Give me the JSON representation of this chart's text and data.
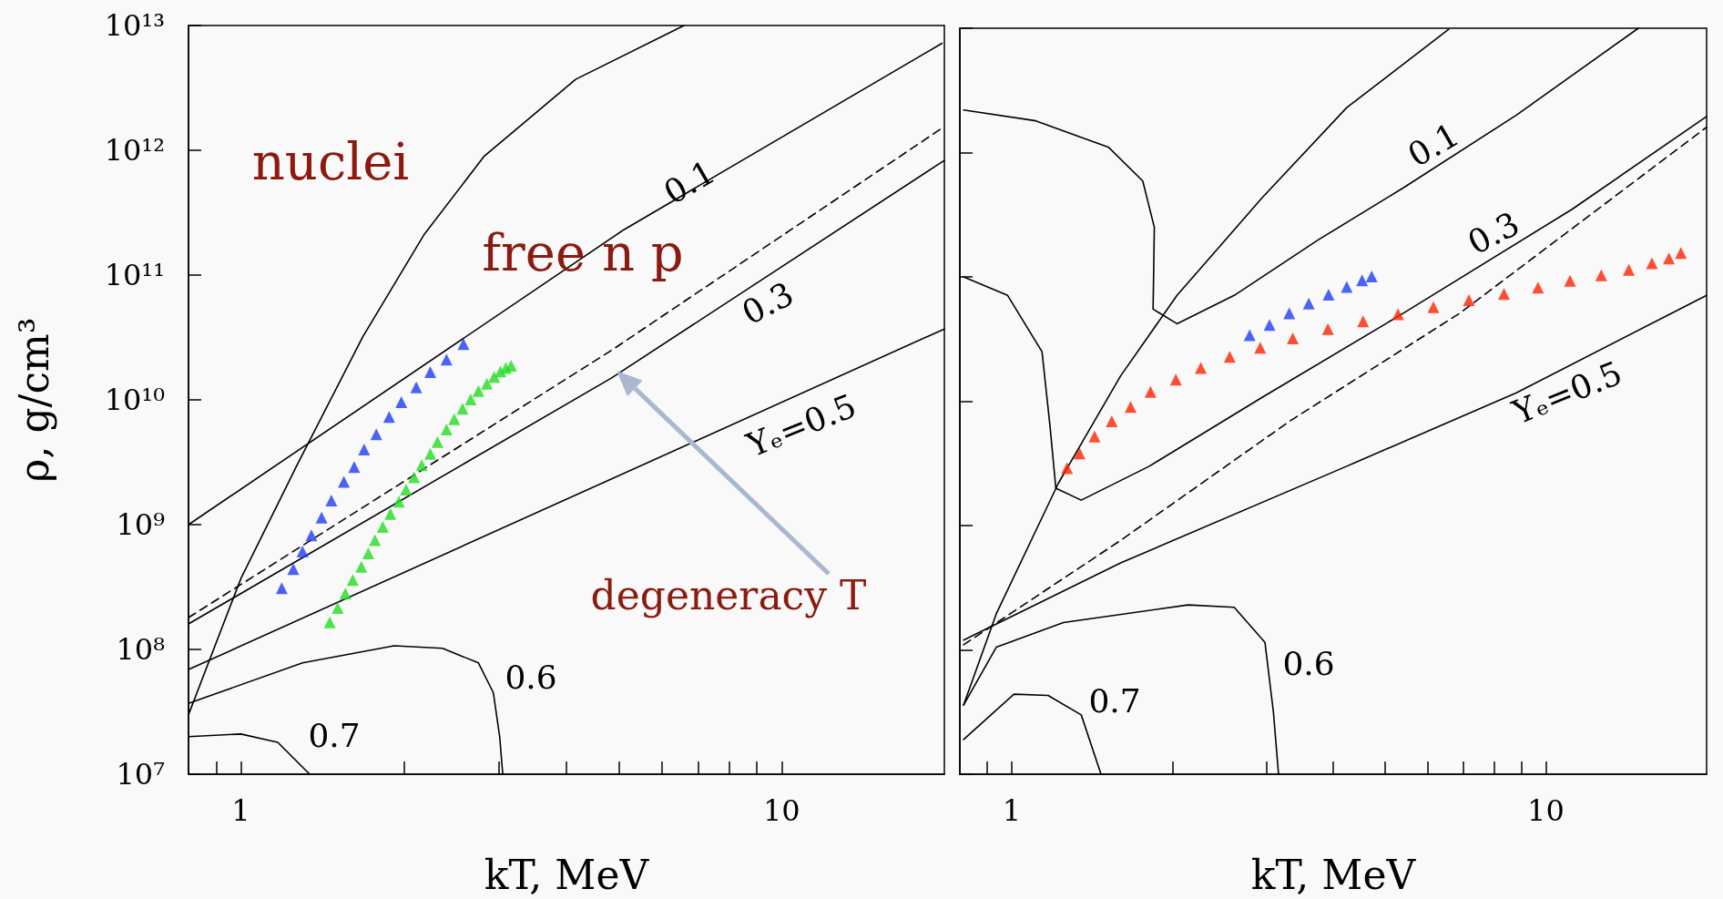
{
  "chart_data": [
    {
      "type": "line",
      "xlabel": "kT, MeV",
      "ylabel": "ρ, g/cm³",
      "log": "xy",
      "grid": false,
      "xlim": [
        0.8,
        20
      ],
      "ylim": [
        10000000.0,
        10000000000000.0
      ],
      "xticks": [
        {
          "value": 0.9,
          "label": null
        },
        {
          "value": 1,
          "label": "1"
        },
        {
          "value": 2,
          "label": null
        },
        {
          "value": 3,
          "label": null
        },
        {
          "value": 4,
          "label": null
        },
        {
          "value": 5,
          "label": null
        },
        {
          "value": 6,
          "label": null
        },
        {
          "value": 7,
          "label": null
        },
        {
          "value": 8,
          "label": null
        },
        {
          "value": 9,
          "label": null
        },
        {
          "value": 10,
          "label": "10"
        }
      ],
      "yticks": [
        {
          "value": 10000000.0,
          "label": "10⁷"
        },
        {
          "value": 100000000.0,
          "label": "10⁸"
        },
        {
          "value": 1000000000.0,
          "label": "10⁹"
        },
        {
          "value": 10000000000.0,
          "label": "10¹⁰"
        },
        {
          "value": 100000000000.0,
          "label": "10¹¹"
        },
        {
          "value": 1000000000000.0,
          "label": "10¹²"
        },
        {
          "value": 10000000000000.0,
          "label": "10¹³"
        }
      ],
      "series": [
        {
          "color": "#000000",
          "marker": "none",
          "line_style": "solid",
          "x": [
            0.8,
            1.0,
            1.27,
            1.68,
            2.18,
            2.82,
            4.16,
            6.6
          ],
          "values": [
            30000000.0,
            370000000.0,
            3000000000.0,
            32000000000.0,
            210000000000.0,
            900000000000.0,
            3700000000000.0,
            10000000000000.0
          ]
        },
        {
          "color": "#000000",
          "marker": "none",
          "line_style": "solid",
          "x": [
            0.8,
            5.1,
            19.8
          ],
          "values": [
            1000000000.0,
            230000000000.0,
            7200000000000.0
          ]
        },
        {
          "color": "#000000",
          "marker": "none",
          "line_style": "dashed",
          "x": [
            0.8,
            4.85,
            20
          ],
          "values": [
            180000000.0,
            25000000000.0,
            1550000000000.0
          ]
        },
        {
          "color": "#000000",
          "marker": "none",
          "line_style": "solid",
          "x": [
            0.8,
            4.85,
            20
          ],
          "values": [
            160000000.0,
            15000000000.0,
            830000000000.0
          ]
        },
        {
          "color": "#000000",
          "marker": "none",
          "line_style": "solid",
          "x": [
            0.8,
            20
          ],
          "values": [
            69000000.0,
            37000000000.0
          ]
        },
        {
          "color": "#000000",
          "marker": "none",
          "line_style": "solid",
          "x": [
            0.8,
            1.3,
            1.92,
            2.36,
            2.75,
            2.93,
            3.01,
            3.05
          ],
          "values": [
            37000000.0,
            78000000.0,
            107000000.0,
            102000000.0,
            78000000.0,
            45000000.0,
            20000000.0,
            10000000.0
          ]
        },
        {
          "color": "#000000",
          "marker": "none",
          "line_style": "solid",
          "x": [
            0.8,
            1.0,
            1.17,
            1.34
          ],
          "values": [
            20000000.0,
            21000000.0,
            18000000.0,
            10000000.0
          ]
        },
        {
          "type": "scatter",
          "color": "#1f3cf5",
          "marker": "triangle",
          "x": [
            1.19,
            1.25,
            1.3,
            1.35,
            1.41,
            1.47,
            1.55,
            1.62,
            1.69,
            1.78,
            1.88,
            1.98,
            2.11,
            2.24,
            2.4,
            2.58
          ],
          "values": [
            310000000.0,
            440000000.0,
            610000000.0,
            820000000.0,
            1140000000.0,
            1560000000.0,
            2200000000.0,
            2900000000.0,
            4000000000.0,
            5300000000.0,
            7300000000.0,
            9600000000.0,
            12600000000.0,
            16700000000.0,
            21000000000.0,
            28000000000.0
          ]
        },
        {
          "type": "scatter",
          "color": "#22dd22",
          "marker": "triangle",
          "x": [
            1.46,
            1.51,
            1.56,
            1.61,
            1.67,
            1.72,
            1.77,
            1.83,
            1.89,
            1.96,
            2.02,
            2.09,
            2.16,
            2.24,
            2.31,
            2.4,
            2.48,
            2.57,
            2.66,
            2.75,
            2.85,
            2.94,
            3.02,
            3.09,
            3.16
          ],
          "values": [
            165000000.0,
            215000000.0,
            280000000.0,
            360000000.0,
            460000000.0,
            590000000.0,
            750000000.0,
            960000000.0,
            1220000000.0,
            1530000000.0,
            1910000000.0,
            2400000000.0,
            3000000000.0,
            3700000000.0,
            4600000000.0,
            5800000000.0,
            7000000000.0,
            8500000000.0,
            10100000000.0,
            11800000000.0,
            13500000000.0,
            15300000000.0,
            16900000000.0,
            18000000000.0,
            18800000000.0
          ]
        }
      ],
      "annotations": [
        "nuclei",
        "free n p",
        "0.1",
        "0.3",
        "Yₑ=0.5",
        "0.6",
        "0.7",
        "degeneracy T"
      ]
    },
    {
      "type": "line",
      "xlabel": "kT, MeV",
      "log": "xy",
      "grid": false,
      "tick_labels": "x",
      "xlim": [
        0.8,
        20
      ],
      "ylim": [
        10000000.0,
        10000000000000.0
      ],
      "xticks": [
        {
          "value": 0.9,
          "label": null
        },
        {
          "value": 1,
          "label": "1"
        },
        {
          "value": 2,
          "label": null
        },
        {
          "value": 3,
          "label": null
        },
        {
          "value": 4,
          "label": null
        },
        {
          "value": 5,
          "label": null
        },
        {
          "value": 6,
          "label": null
        },
        {
          "value": 7,
          "label": null
        },
        {
          "value": 8,
          "label": null
        },
        {
          "value": 9,
          "label": null
        },
        {
          "value": 10,
          "label": "10"
        }
      ],
      "yticks": [
        {
          "value": 10000000.0,
          "label": null
        },
        {
          "value": 100000000.0,
          "label": null
        },
        {
          "value": 1000000000.0,
          "label": null
        },
        {
          "value": 10000000000.0,
          "label": null
        },
        {
          "value": 100000000000.0,
          "label": null
        },
        {
          "value": 1000000000000.0,
          "label": null
        },
        {
          "value": 10000000000000.0,
          "label": null
        }
      ],
      "series": [
        {
          "color": "#000000",
          "marker": "none",
          "line_style": "solid",
          "x": [
            0.813,
            0.936,
            1.224,
            1.6,
            2.04,
            2.94,
            4.24,
            6.58
          ],
          "values": [
            36000000.0,
            195000000.0,
            2200000000.0,
            16000000000.0,
            71000000000.0,
            430000000000.0,
            2300000000000.0,
            9800000000000.0
          ]
        },
        {
          "color": "#000000",
          "marker": "none",
          "line_style": "solid",
          "x": [
            0.813,
            1.11,
            1.52,
            1.76,
            1.85,
            1.84,
            2.04,
            2.61,
            3.76,
            5.41,
            8.81,
            14.9
          ],
          "values": [
            2200000000000.0,
            1800000000000.0,
            1100000000000.0,
            590000000000.0,
            250000000000.0,
            55000000000.0,
            42000000000.0,
            71000000000.0,
            200000000000.0,
            520000000000.0,
            2000000000000.0,
            10000000000000.0
          ]
        },
        {
          "color": "#000000",
          "marker": "none",
          "line_style": "solid",
          "x": [
            0.813,
            0.983,
            1.14,
            1.18,
            1.21,
            1.35,
            1.81,
            2.94,
            5.41,
            11.2,
            20
          ],
          "values": [
            100000000000.0,
            71000000000.0,
            25000000000.0,
            6300000000.0,
            2000000000.0,
            1600000000.0,
            3000000000.0,
            10700000000.0,
            51000000000.0,
            350000000000.0,
            1950000000000.0
          ]
        },
        {
          "color": "#000000",
          "marker": "none",
          "line_style": "dashed",
          "x": [
            0.813,
            1.6,
            3.33,
            6.9,
            20
          ],
          "values": [
            110000000.0,
            760000000.0,
            7000000000.0,
            51000000000.0,
            1600000000000.0
          ]
        },
        {
          "color": "#000000",
          "marker": "none",
          "line_style": "solid",
          "x": [
            0.813,
            1.6,
            4.24,
            8.81,
            20
          ],
          "values": [
            120000000.0,
            500000000.0,
            3000000000.0,
            11700000000.0,
            71000000000.0
          ]
        },
        {
          "color": "#000000",
          "marker": "none",
          "line_style": "solid",
          "x": [
            0.813,
            0.936,
            1.25,
            2.14,
            2.61,
            2.98,
            3.09,
            3.16
          ],
          "values": [
            36000000.0,
            105000000.0,
            166000000.0,
            230000000.0,
            220000000.0,
            115000000.0,
            32000000.0,
            10000000.0
          ]
        },
        {
          "color": "#000000",
          "marker": "none",
          "line_style": "solid",
          "x": [
            0.813,
            1.01,
            1.17,
            1.35,
            1.47
          ],
          "values": [
            19000000.0,
            44000000.0,
            43000000.0,
            30000000.0,
            10000000.0
          ]
        },
        {
          "type": "scatter",
          "color": "#1f3cf5",
          "marker": "triangle",
          "x": [
            2.79,
            3.04,
            3.31,
            3.6,
            3.92,
            4.24,
            4.53,
            4.72
          ],
          "values": [
            34000000000.0,
            41000000000.0,
            51000000000.0,
            61000000000.0,
            72000000000.0,
            83000000000.0,
            94000000000.0,
            101000000000.0
          ]
        },
        {
          "type": "scatter",
          "color": "#ff2200",
          "marker": "triangle",
          "x": [
            1.27,
            1.34,
            1.43,
            1.54,
            1.67,
            1.82,
            2.03,
            2.26,
            2.56,
            2.92,
            3.36,
            3.91,
            4.55,
            5.29,
            6.16,
            7.18,
            8.35,
            9.67,
            11.1,
            12.7,
            14.3,
            15.8,
            17.0,
            17.9
          ],
          "values": [
            2900000000.0,
            3800000000.0,
            5200000000.0,
            6900000000.0,
            9000000000.0,
            11900000000.0,
            14900000000.0,
            18500000000.0,
            22800000000.0,
            26900000000.0,
            32000000000.0,
            38000000000.0,
            44000000000.0,
            50000000000.0,
            57000000000.0,
            65000000000.0,
            73000000000.0,
            82000000000.0,
            93000000000.0,
            103000000000.0,
            114000000000.0,
            129000000000.0,
            141000000000.0,
            156000000000.0
          ]
        }
      ],
      "annotations": [
        "0.1",
        "0.3",
        "Yₑ=0.5",
        "0.6",
        "0.7"
      ]
    }
  ]
}
